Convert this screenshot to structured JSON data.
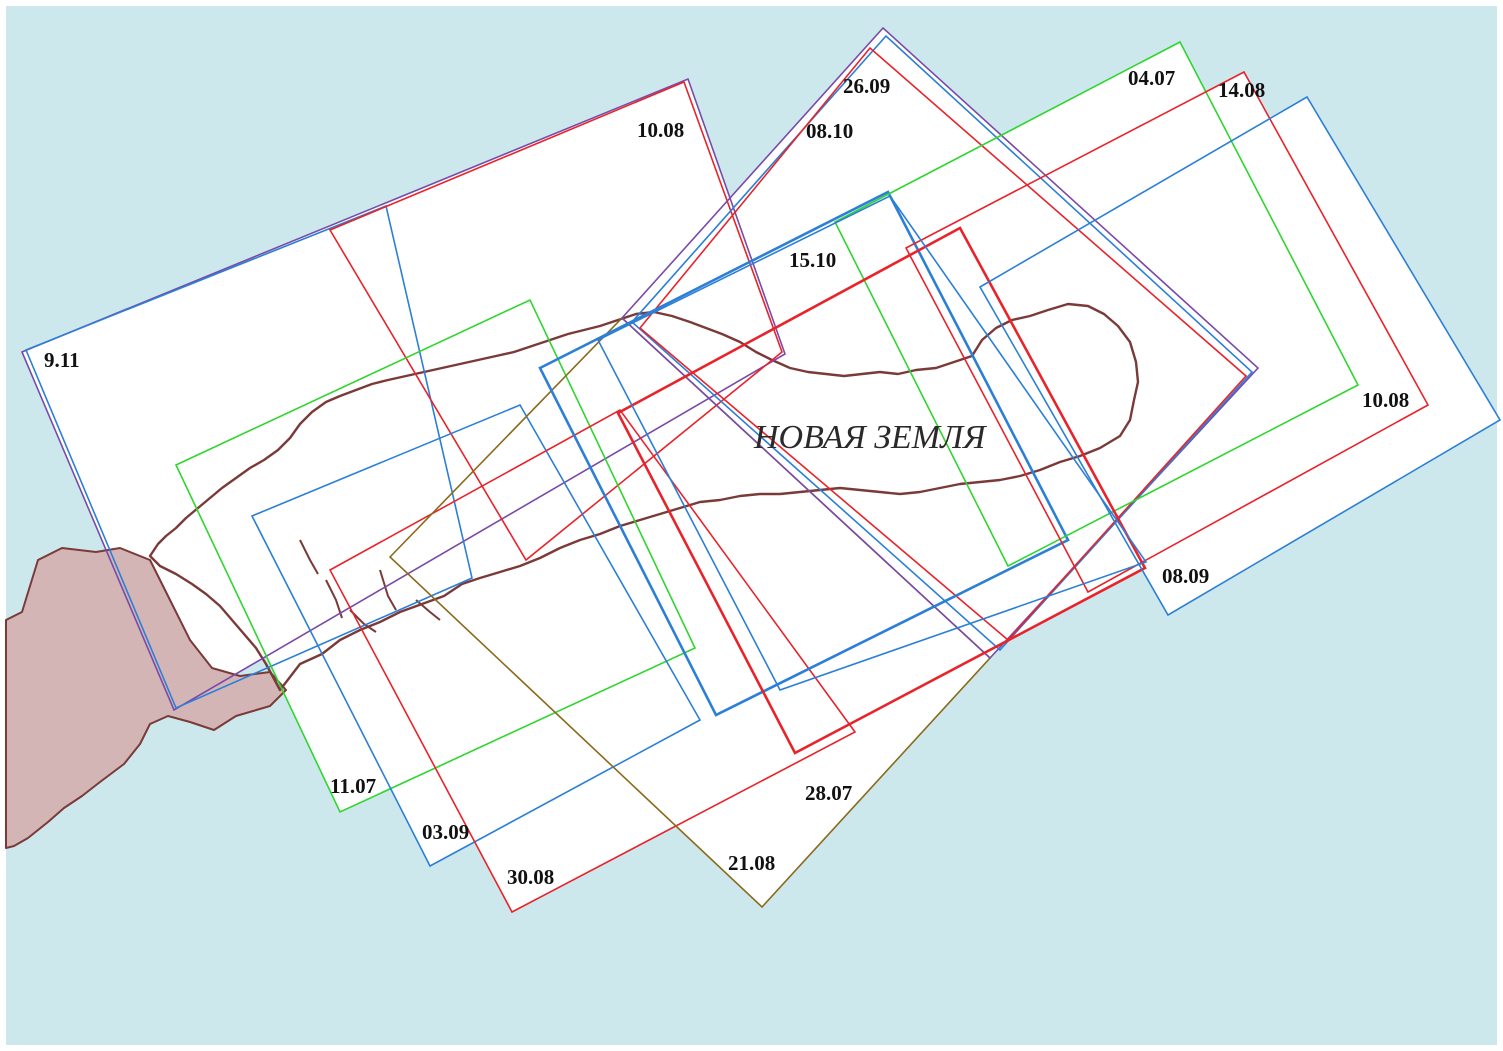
{
  "map": {
    "region_label": "НОВАЯ ЗЕМЛЯ",
    "colors": {
      "sea": "#cde8ed",
      "frame_bg": "#ffffff",
      "land_fill": "#d3b5b5",
      "coastline": "#7a3a38",
      "footprint_red": "#e8232a",
      "footprint_blue": "#2b7fd6",
      "footprint_green": "#2fd62f",
      "footprint_purple": "#7a4aa8",
      "footprint_olive": "#8a6a1a"
    },
    "footprint_labels": [
      {
        "id": "f-0911",
        "date": "9.11",
        "color": "purple"
      },
      {
        "id": "f-1008-west",
        "date": "10.08",
        "color": "purple"
      },
      {
        "id": "f-2609",
        "date": "26.09",
        "color": "purple"
      },
      {
        "id": "f-0810",
        "date": "08.10",
        "color": "blue"
      },
      {
        "id": "f-1510",
        "date": "15.10",
        "color": "blue"
      },
      {
        "id": "f-0407",
        "date": "04.07",
        "color": "green"
      },
      {
        "id": "f-1408",
        "date": "14.08",
        "color": "red"
      },
      {
        "id": "f-1008-east",
        "date": "10.08",
        "color": "blue"
      },
      {
        "id": "f-0809",
        "date": "08.09",
        "color": "blue"
      },
      {
        "id": "f-1107",
        "date": "11.07",
        "color": "green"
      },
      {
        "id": "f-0309",
        "date": "03.09",
        "color": "blue"
      },
      {
        "id": "f-3008",
        "date": "30.08",
        "color": "red"
      },
      {
        "id": "f-2108",
        "date": "21.08",
        "color": "olive"
      },
      {
        "id": "f-2807",
        "date": "28.07",
        "color": "red"
      }
    ]
  }
}
